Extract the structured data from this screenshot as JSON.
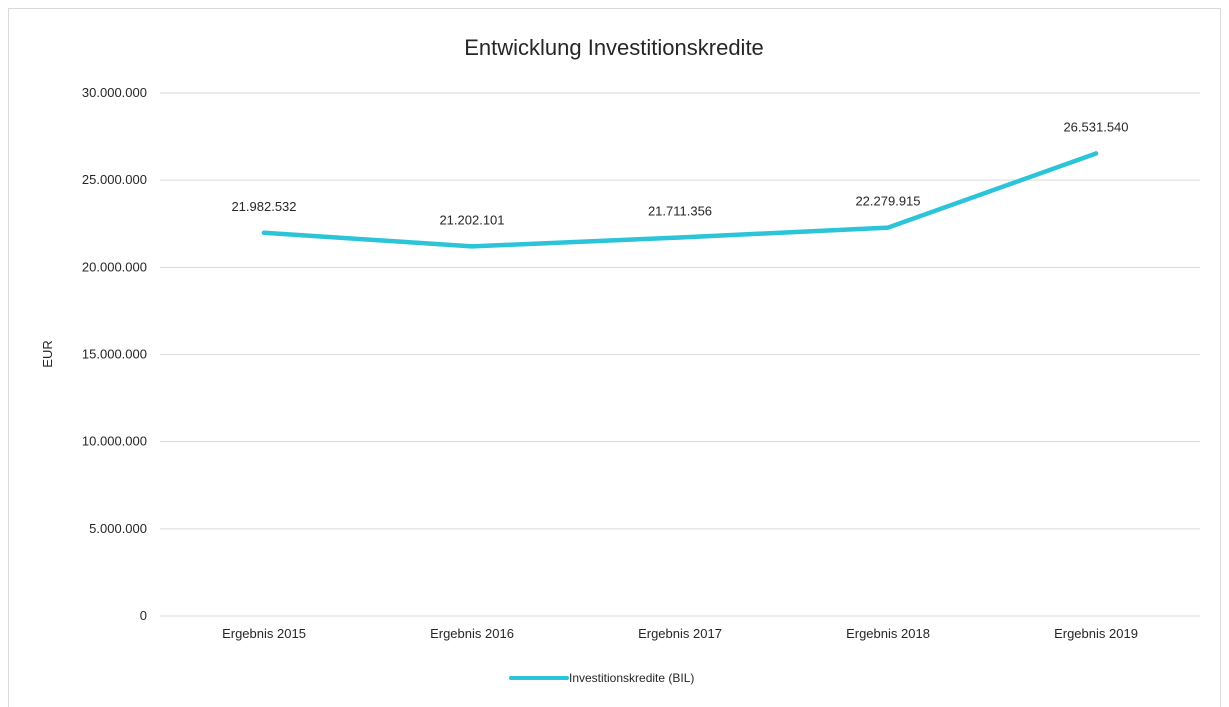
{
  "chart_data": {
    "type": "line",
    "title": "Entwicklung Investitionskredite",
    "xlabel": "",
    "ylabel": "EUR",
    "categories": [
      "Ergebnis 2015",
      "Ergebnis 2016",
      "Ergebnis 2017",
      "Ergebnis 2018",
      "Ergebnis 2019"
    ],
    "series": [
      {
        "name": "Investitionskredite (BIL)",
        "values": [
          21982532,
          21202101,
          21711356,
          22279915,
          26531540
        ],
        "data_labels": [
          "21.982.532",
          "21.202.101",
          "21.711.356",
          "22.279.915",
          "26.531.540"
        ],
        "color": "#2bc4d8"
      }
    ],
    "ylim": [
      0,
      30000000
    ],
    "y_ticks": [
      0,
      5000000,
      10000000,
      15000000,
      20000000,
      25000000,
      30000000
    ],
    "y_tick_labels": [
      "0",
      "5.000.000",
      "10.000.000",
      "15.000.000",
      "20.000.000",
      "25.000.000",
      "30.000.000"
    ],
    "grid": true,
    "legend_position": "bottom"
  }
}
